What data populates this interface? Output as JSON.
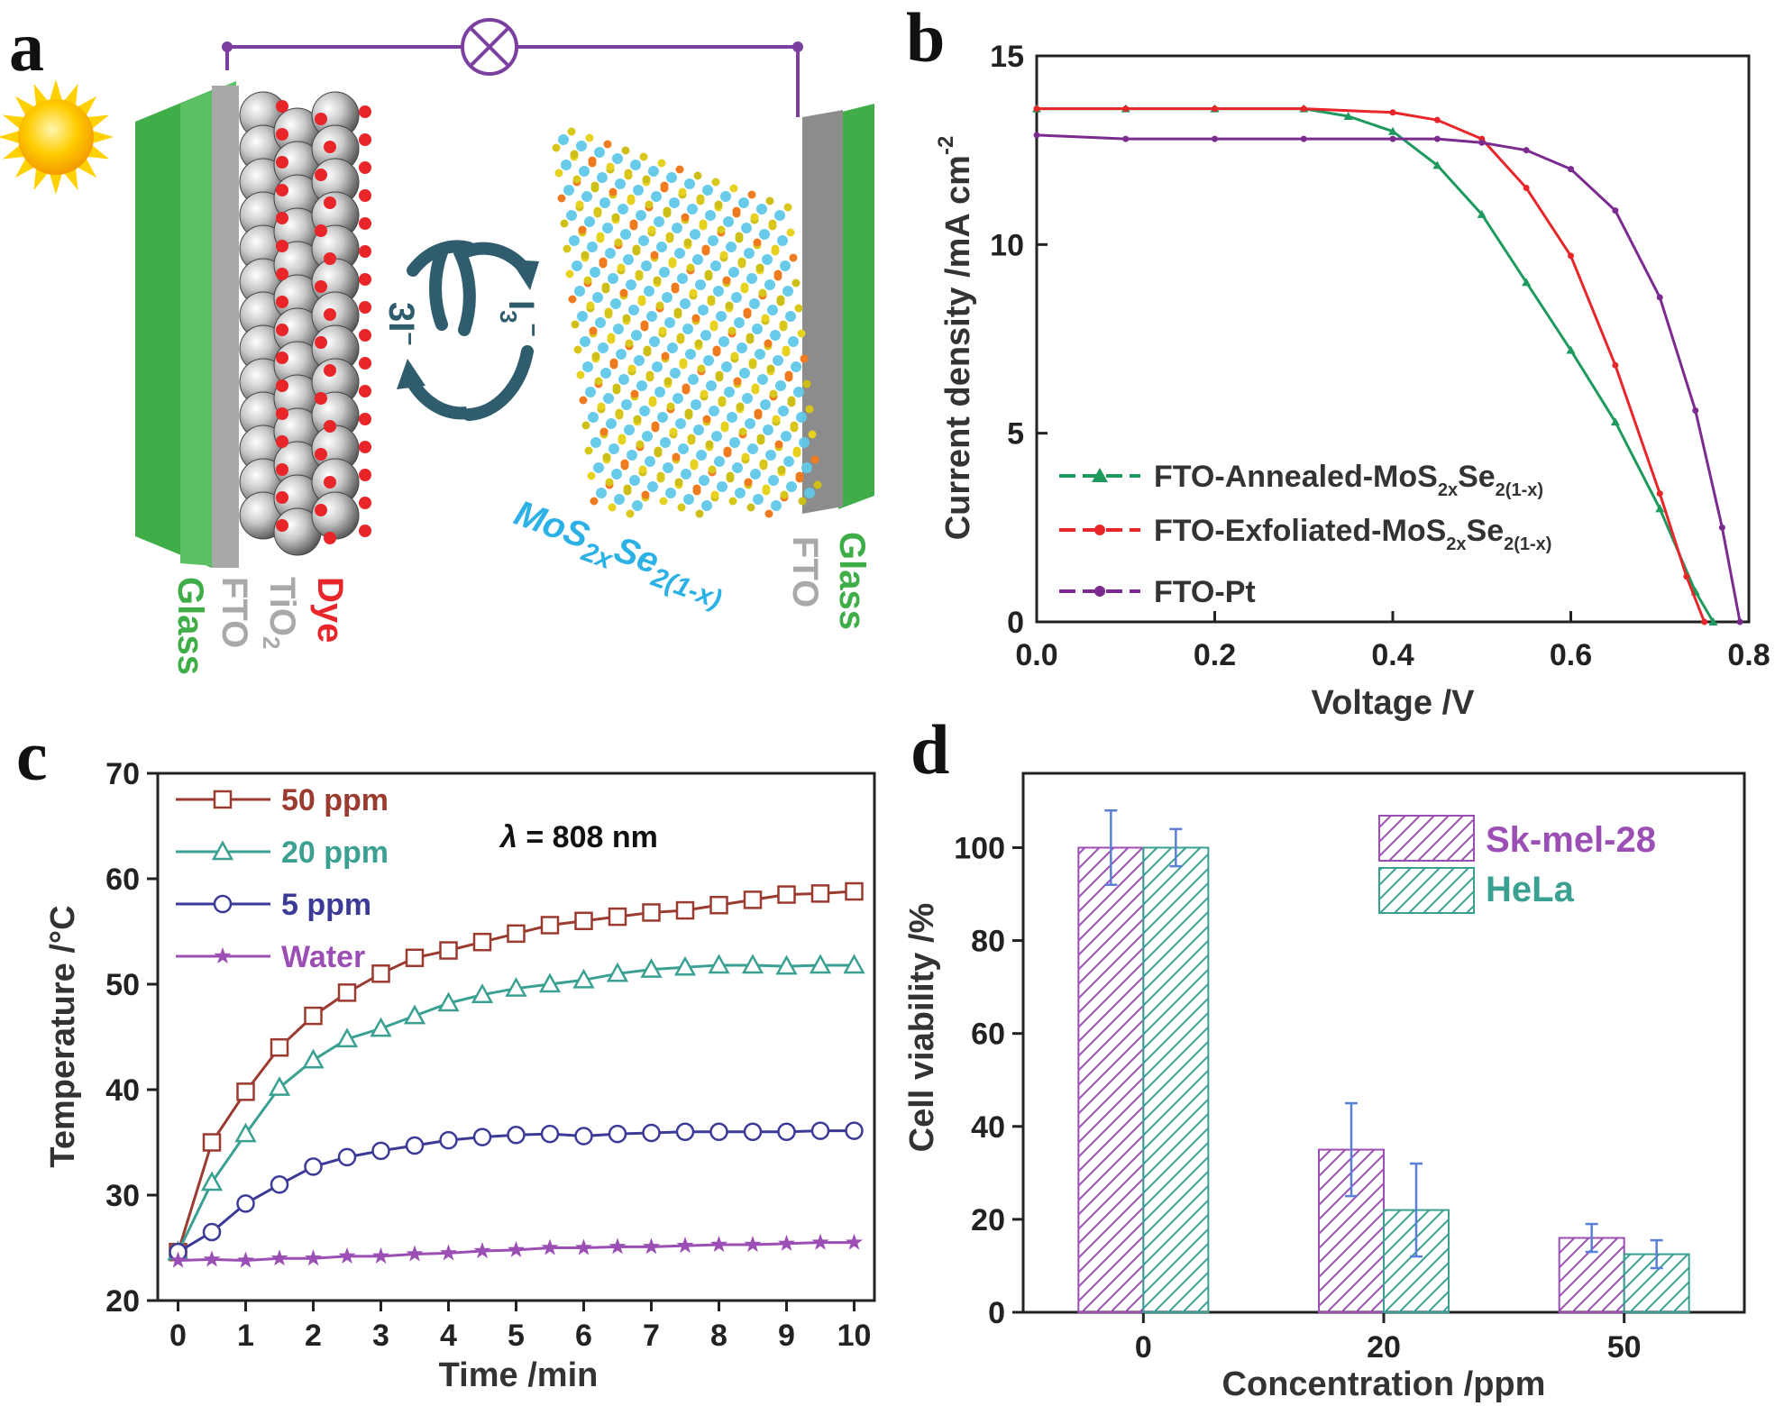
{
  "panels": {
    "a": {
      "label": "a",
      "labels": {
        "glass_left": "Glass",
        "fto_left": "FTO",
        "tio2_main": "TiO",
        "tio2_sub": "2",
        "dye": "Dye",
        "iodide_main": "3I",
        "iodide_sup": "−",
        "triiodide_main": "I",
        "triiodide_sub": "3",
        "triiodide_sup": "−",
        "mos_main1": "MoS",
        "mos_sub1": "2x",
        "mos_main2": "Se",
        "mos_sub2": "2(1-x)",
        "fto_right": "FTO",
        "glass_right": "Glass"
      },
      "colors": {
        "glass": "#3fae49",
        "fto": "#a9a9a9",
        "dye": "#e8262a",
        "circuit": "#7b3fa0",
        "mos_text": "#2cb1e6"
      },
      "icons": [
        "sun-icon",
        "lamp-icon",
        "redox-cycle-icon"
      ]
    },
    "b": {
      "label": "b"
    },
    "c": {
      "label": "c"
    },
    "d": {
      "label": "d"
    }
  },
  "chart_data": [
    {
      "panel": "b",
      "type": "line",
      "xlabel": "Voltage /V",
      "ylabel_main": "Current density /mA cm",
      "ylabel_sup": "-2",
      "xlim": [
        0.0,
        0.8
      ],
      "ylim": [
        0,
        15
      ],
      "xticks": [
        "0.0",
        "0.2",
        "0.4",
        "0.6",
        "0.8"
      ],
      "yticks": [
        "0",
        "5",
        "10",
        "15"
      ],
      "legend_position": "bottom-left",
      "series": [
        {
          "legend": {
            "main1": "FTO-Annealed-MoS",
            "sub1": "2x",
            "main2": "Se",
            "sub2": "2(1-x)"
          },
          "color": "#1f9a5f",
          "marker": "triangle",
          "x": [
            0.0,
            0.1,
            0.2,
            0.3,
            0.35,
            0.4,
            0.45,
            0.5,
            0.55,
            0.6,
            0.65,
            0.7,
            0.74,
            0.76
          ],
          "y": [
            13.6,
            13.6,
            13.6,
            13.6,
            13.4,
            13.0,
            12.1,
            10.8,
            9.0,
            7.2,
            5.3,
            3.0,
            0.8,
            0.0
          ]
        },
        {
          "legend": {
            "main1": "FTO-Exfoliated-MoS",
            "sub1": "2x",
            "main2": "Se",
            "sub2": "2(1-x)"
          },
          "color": "#e8262a",
          "marker": "circle",
          "x": [
            0.0,
            0.1,
            0.2,
            0.3,
            0.4,
            0.45,
            0.5,
            0.55,
            0.6,
            0.65,
            0.7,
            0.73,
            0.75
          ],
          "y": [
            13.6,
            13.6,
            13.6,
            13.6,
            13.5,
            13.3,
            12.8,
            11.5,
            9.7,
            6.8,
            3.4,
            1.2,
            0.0
          ]
        },
        {
          "legend": {
            "main1": "FTO-Pt"
          },
          "color": "#7b2b8f",
          "marker": "circle",
          "x": [
            0.0,
            0.1,
            0.2,
            0.3,
            0.4,
            0.45,
            0.5,
            0.55,
            0.6,
            0.65,
            0.7,
            0.74,
            0.77,
            0.79
          ],
          "y": [
            12.9,
            12.8,
            12.8,
            12.8,
            12.8,
            12.8,
            12.7,
            12.5,
            12.0,
            10.9,
            8.6,
            5.6,
            2.5,
            0.0
          ]
        }
      ]
    },
    {
      "panel": "c",
      "type": "line",
      "xlabel": "Time /min",
      "ylabel": "Temperature /°C",
      "xlim": [
        -0.3,
        10.3
      ],
      "ylim": [
        20,
        70
      ],
      "xticks": [
        "0",
        "1",
        "2",
        "3",
        "4",
        "5",
        "6",
        "7",
        "8",
        "9",
        "10"
      ],
      "yticks": [
        "20",
        "30",
        "40",
        "50",
        "60",
        "70"
      ],
      "annotation": {
        "lambda": "λ",
        "rest": " = 808 nm"
      },
      "legend_position": "top-left",
      "x": [
        0,
        0.5,
        1,
        1.5,
        2,
        2.5,
        3,
        3.5,
        4,
        4.5,
        5,
        5.5,
        6,
        6.5,
        7,
        7.5,
        8,
        8.5,
        9,
        9.5,
        10
      ],
      "series": [
        {
          "name": "50 ppm",
          "color": "#9b3a2f",
          "marker": "square",
          "y": [
            24.6,
            35.0,
            39.8,
            44.0,
            47.0,
            49.2,
            51.0,
            52.5,
            53.2,
            54.0,
            54.8,
            55.6,
            56.0,
            56.4,
            56.8,
            57.0,
            57.5,
            58.0,
            58.5,
            58.6,
            58.8
          ]
        },
        {
          "name": "20 ppm",
          "color": "#3aa092",
          "marker": "triangle",
          "y": [
            24.6,
            31.2,
            35.8,
            40.2,
            42.8,
            44.8,
            45.8,
            47.0,
            48.2,
            49.0,
            49.6,
            50.0,
            50.4,
            51.0,
            51.4,
            51.6,
            51.8,
            51.8,
            51.7,
            51.8,
            51.8
          ]
        },
        {
          "name": "5 ppm",
          "color": "#3b3a96",
          "marker": "circle",
          "y": [
            24.6,
            26.5,
            29.2,
            31.0,
            32.7,
            33.6,
            34.2,
            34.7,
            35.2,
            35.5,
            35.7,
            35.8,
            35.6,
            35.8,
            35.9,
            36.0,
            36.0,
            36.0,
            36.0,
            36.1,
            36.1
          ]
        },
        {
          "name": "Water",
          "color": "#9b4fb5",
          "marker": "star",
          "y": [
            23.8,
            23.9,
            23.8,
            24.0,
            24.0,
            24.2,
            24.2,
            24.4,
            24.5,
            24.7,
            24.8,
            25.0,
            25.0,
            25.1,
            25.1,
            25.2,
            25.3,
            25.3,
            25.4,
            25.5,
            25.5
          ]
        }
      ]
    },
    {
      "panel": "d",
      "type": "bar",
      "xlabel": "Concentration /ppm",
      "ylabel": "Cell viability /%",
      "categories": [
        "0",
        "20",
        "50"
      ],
      "ylim": [
        0,
        116
      ],
      "yticks": [
        "0",
        "20",
        "40",
        "60",
        "80",
        "100"
      ],
      "legend_position": "top-right",
      "series": [
        {
          "name": "Sk-mel-28",
          "color": "#9b4fb5",
          "values": [
            100,
            35,
            16
          ],
          "errors": [
            8,
            10,
            3
          ]
        },
        {
          "name": "HeLa",
          "color": "#3aa092",
          "values": [
            100,
            22,
            12.5
          ],
          "errors": [
            4,
            10,
            3
          ]
        }
      ]
    }
  ]
}
